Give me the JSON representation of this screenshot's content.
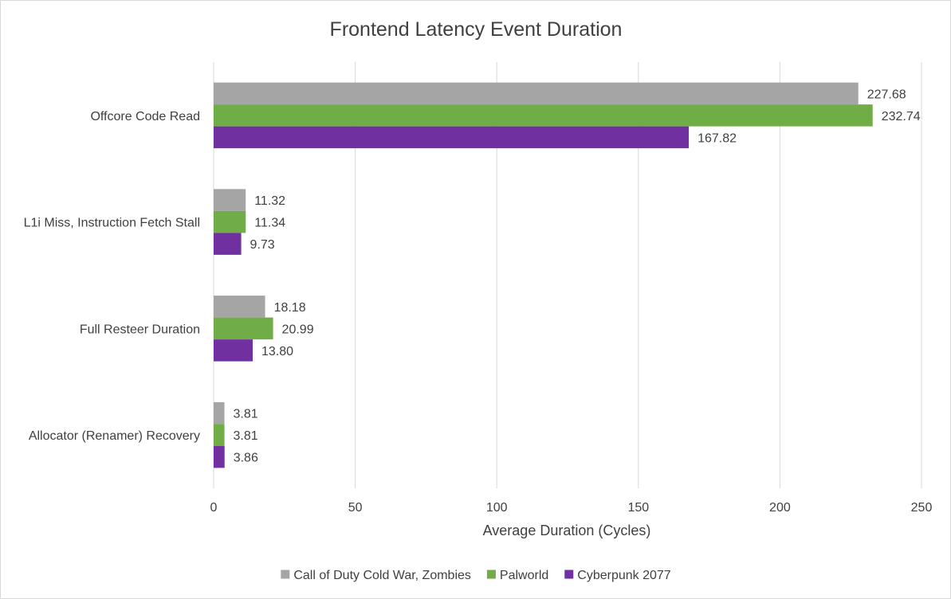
{
  "chart_data": {
    "type": "bar",
    "orientation": "horizontal",
    "title": "Frontend Latency Event Duration",
    "xlabel": "Average Duration (Cycles)",
    "ylabel": "",
    "xlim": [
      0,
      250
    ],
    "x_ticks": [
      0,
      50,
      100,
      150,
      200,
      250
    ],
    "grid": true,
    "legend_position": "bottom",
    "categories": [
      "Offcore Code Read",
      "L1i Miss, Instruction Fetch Stall",
      "Full Resteer Duration",
      "Allocator (Renamer) Recovery"
    ],
    "series": [
      {
        "name": "Call of Duty Cold War, Zombies",
        "color": "#a5a5a5",
        "values": [
          227.68,
          11.32,
          18.18,
          3.81
        ],
        "labels": [
          "227.68",
          "11.32",
          "18.18",
          "3.81"
        ]
      },
      {
        "name": "Palworld",
        "color": "#70ad47",
        "values": [
          232.74,
          11.34,
          20.99,
          3.81
        ],
        "labels": [
          "232.74",
          "11.34",
          "20.99",
          "3.81"
        ]
      },
      {
        "name": "Cyberpunk 2077",
        "color": "#7030a0",
        "values": [
          167.82,
          9.73,
          13.8,
          3.86
        ],
        "labels": [
          "167.82",
          "9.73",
          "13.80",
          "3.86"
        ]
      }
    ]
  }
}
